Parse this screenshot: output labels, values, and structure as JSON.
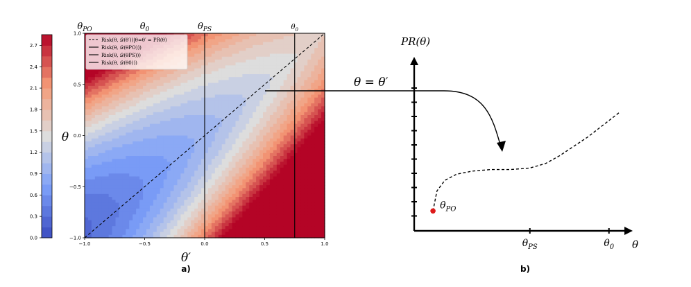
{
  "chart_data": [
    {
      "type": "heatmap",
      "panel_label": "a)",
      "xlabel": "θ′",
      "ylabel": "θ",
      "xlim": [
        -1.0,
        1.0
      ],
      "ylim": [
        -1.0,
        1.0
      ],
      "x_ticks": [
        "−1.0",
        "−0.5",
        "0.0",
        "0.5",
        "1.0"
      ],
      "y_ticks": [
        "−1.0",
        "−0.5",
        "0.0",
        "0.5",
        "1.0"
      ],
      "x_tick_values": [
        -1.0,
        -0.5,
        0.0,
        0.5,
        1.0
      ],
      "y_tick_values": [
        -1.0,
        -0.5,
        0.0,
        0.5,
        1.0
      ],
      "colorbar": {
        "range": [
          0.0,
          2.85
        ],
        "ticks": [
          "0.0",
          "0.3",
          "0.6",
          "0.9",
          "1.2",
          "1.5",
          "1.8",
          "2.1",
          "2.4",
          "2.7"
        ],
        "tick_values": [
          0.0,
          0.3,
          0.6,
          0.9,
          1.2,
          1.5,
          1.8,
          2.1,
          2.4,
          2.7
        ],
        "colormap": "coolwarm"
      },
      "top_labels": [
        {
          "text": "θPO",
          "x": -1.0
        },
        {
          "text": "θ0",
          "x": -0.5
        },
        {
          "text": "θPS",
          "x": 0.0
        },
        {
          "text": "θ0",
          "x": 0.75
        }
      ],
      "vertical_lines_x": [
        0.0,
        0.75
      ],
      "diagonal": {
        "from": [
          -1.0,
          -1.0
        ],
        "to": [
          1.0,
          1.0
        ]
      },
      "legend": {
        "placement": "top-left",
        "entries": [
          {
            "label": "Risk(θ, 𝒟(θ′))|θ=θ′ = PR(θ)",
            "style": "dashed"
          },
          {
            "label": "Risk(θ, 𝒟(θPO)))",
            "style": "solid"
          },
          {
            "label": "Risk(θ, 𝒟(θPS)))",
            "style": "solid"
          },
          {
            "label": "Risk(θ, 𝒟(θ0)))",
            "style": "solid"
          }
        ]
      }
    },
    {
      "type": "line",
      "panel_label": "b)",
      "ylabel": "PR(θ)",
      "xlabel": "θ",
      "annotation": "θ = θ′",
      "x_ticks": [
        "θPS",
        "θ0"
      ],
      "x_tick_values": [
        0.55,
        0.95
      ],
      "ylim": [
        0,
        1
      ],
      "xlim": [
        0,
        1
      ],
      "series": [
        {
          "style": "dashed",
          "x": [
            0.06,
            0.08,
            0.12,
            0.18,
            0.26,
            0.35,
            0.45,
            0.55,
            0.63,
            0.7,
            0.77,
            0.84,
            0.91,
            1.0
          ],
          "y": [
            0.13,
            0.26,
            0.33,
            0.37,
            0.39,
            0.4,
            0.4,
            0.41,
            0.44,
            0.49,
            0.55,
            0.61,
            0.68,
            0.77
          ]
        }
      ],
      "point": {
        "label": "θPO",
        "x": 0.06,
        "y": 0.13,
        "color": "#dd1a1a"
      }
    }
  ]
}
